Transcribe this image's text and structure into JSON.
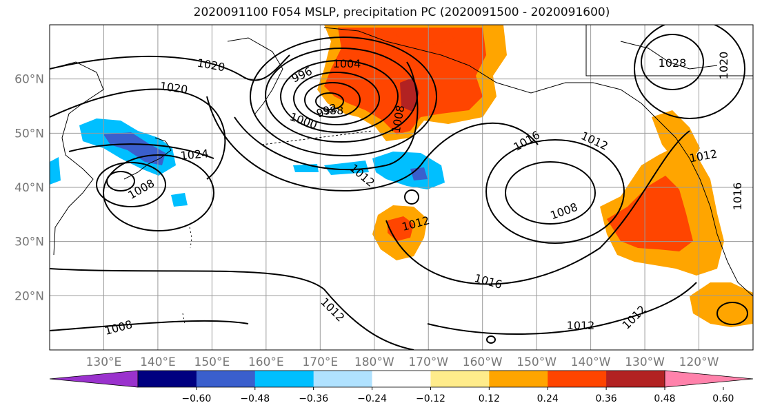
{
  "title": "2020091100 F054 MSLP, precipitation PC (2020091500 - 2020091600)",
  "map": {
    "projection": "cylindrical",
    "lon_range": [
      120,
      250
    ],
    "lat_range": [
      10,
      70
    ],
    "lat_ticks": [
      "20°N",
      "30°N",
      "40°N",
      "50°N",
      "60°N"
    ],
    "lon_ticks": [
      "130°E",
      "140°E",
      "150°E",
      "160°E",
      "170°E",
      "180°W",
      "170°W",
      "160°W",
      "150°W",
      "140°W",
      "130°W",
      "120°W"
    ],
    "grid": true,
    "coastlines": true
  },
  "contours": {
    "field": "MSLP",
    "color": "#000000",
    "labels": [
      "1020",
      "1020",
      "1004",
      "996",
      "1000",
      "992",
      "988",
      "1008",
      "1024",
      "1008",
      "1012",
      "1016",
      "1012",
      "1012",
      "1008",
      "1028",
      "1020",
      "1012",
      "1016",
      "1016",
      "1012",
      "1012",
      "1008",
      "1012"
    ]
  },
  "shading": {
    "field": "precipitation PC",
    "regions": [
      {
        "name": "alaska-positive",
        "level": "0.36-0.48"
      },
      {
        "name": "west-coast-positive",
        "level": "0.36-0.48"
      },
      {
        "name": "central-pacific-positive",
        "level": "0.36-0.48"
      },
      {
        "name": "japan-negative",
        "level": "-0.48--0.36"
      },
      {
        "name": "north-pacific-negative",
        "level": "-0.36--0.24"
      }
    ]
  },
  "colorbar": {
    "colors": [
      "#9a32cd",
      "#000080",
      "#3a5fcd",
      "#00bfff",
      "#b0e2ff",
      "#ffffff",
      "#ffec8b",
      "#ffa500",
      "#ff4500",
      "#b22222",
      "#ff82ab"
    ],
    "tick_labels": [
      "-0.60",
      "-0.48",
      "-0.36",
      "-0.24",
      "-0.12",
      "0.12",
      "0.24",
      "0.36",
      "0.48",
      "0.60"
    ]
  }
}
